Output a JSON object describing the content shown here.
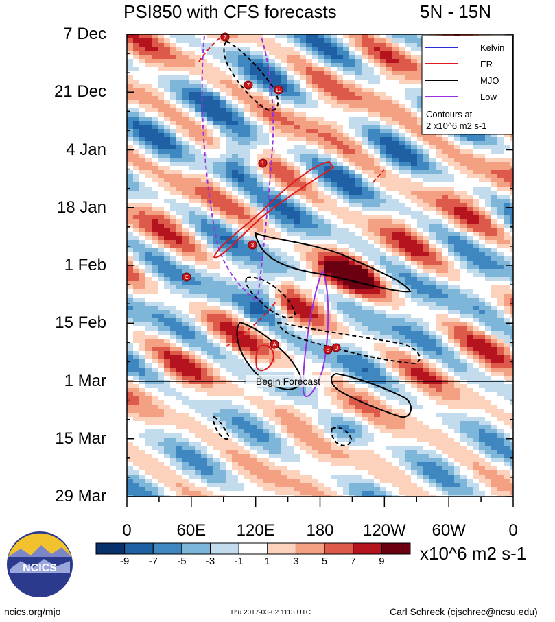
{
  "chart_data": {
    "type": "heatmap",
    "title": "PSI850 with CFS forecasts",
    "region": "5N - 15N",
    "y_dates": [
      "7 Dec",
      "21 Dec",
      "4 Jan",
      "18 Jan",
      "1 Feb",
      "15 Feb",
      "1 Mar",
      "15 Mar",
      "29 Mar"
    ],
    "x_lons": [
      "0",
      "60E",
      "120E",
      "180",
      "120W",
      "60W",
      "0"
    ],
    "x_range": [
      0,
      360
    ],
    "forecast_line_label": "Begin Forecast",
    "legend": {
      "entries": [
        {
          "label": "Kelvin",
          "color": "#2b2bd6",
          "style": "solid"
        },
        {
          "label": "ER",
          "color": "#e0191f",
          "style": "solid"
        },
        {
          "label": "MJO",
          "color": "#000000",
          "style": "solid"
        },
        {
          "label": "Low",
          "color": "#9b30e0",
          "style": "solid"
        }
      ],
      "note_line1": "Contours at",
      "note_line2": "2 x10^6 m2 s-1"
    },
    "colorbar": {
      "labels": [
        "-9",
        "-7",
        "-5",
        "-3",
        "-1",
        "1",
        "3",
        "5",
        "7",
        "9"
      ],
      "colors": [
        "#08306b",
        "#1f5fa3",
        "#3f87c0",
        "#7eb6da",
        "#c2dcee",
        "#ffffff",
        "#fdd2bd",
        "#f3a083",
        "#dd5a4a",
        "#b5141e",
        "#6b0012"
      ],
      "units": "x10^6 m2 s-1"
    },
    "storm_markers": [
      "7",
      "7",
      "10",
      "1",
      "3",
      "C",
      "A",
      "8",
      "9"
    ]
  },
  "logo": {
    "text": "NCICS"
  },
  "footer": {
    "left": "ncics.org/mjo",
    "middle": "Thu 2017-03-02 1113 UTC",
    "right": "Carl Schreck (cjschrec@ncsu.edu)"
  }
}
